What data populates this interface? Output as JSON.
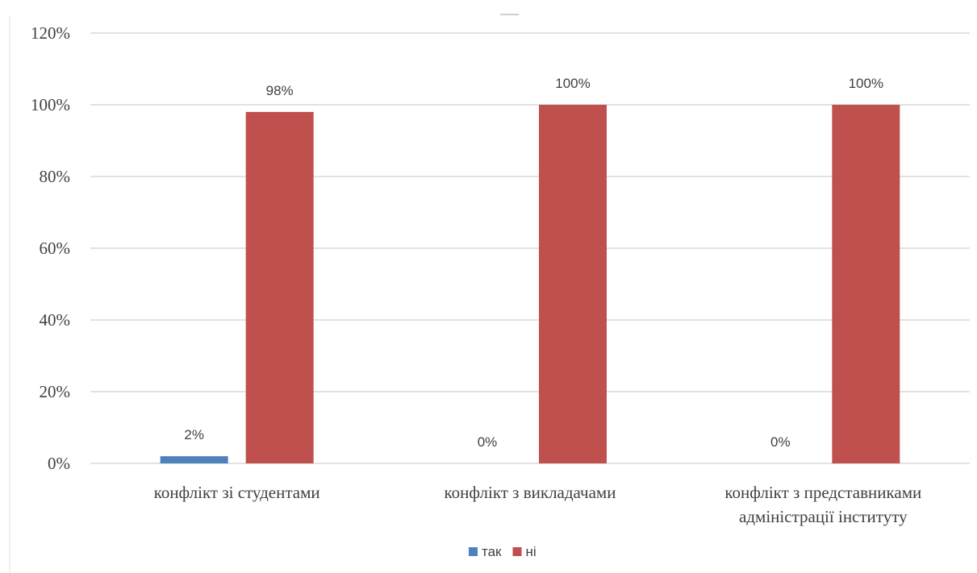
{
  "chart_data": {
    "type": "bar",
    "categories": [
      [
        "конфлікт зі студентами"
      ],
      [
        "конфлікт з викладачами"
      ],
      [
        "конфлікт з представниками",
        "адміністрації інституту"
      ]
    ],
    "series": [
      {
        "name": "так",
        "values": [
          2,
          0,
          0
        ],
        "labels": [
          "2%",
          "0%",
          "0%"
        ],
        "color": "#4f81bd"
      },
      {
        "name": "ні",
        "values": [
          98,
          100,
          100
        ],
        "labels": [
          "98%",
          "100%",
          "100%"
        ],
        "color": "#c0504d"
      }
    ],
    "yticks": [
      "0%",
      "20%",
      "40%",
      "60%",
      "80%",
      "100%",
      "120%"
    ],
    "ylim": [
      0,
      120
    ],
    "grid": true,
    "legend": "bottom"
  }
}
